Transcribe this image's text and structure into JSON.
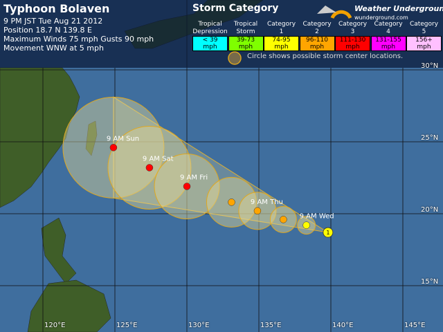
{
  "storm": {
    "name": "Typhoon Bolaven",
    "time": "9 PM JST Tue Aug 21 2012",
    "position": "Position 18.7 N 139.8 E",
    "winds": "Maximum Winds 75 mph  Gusts 90 mph",
    "movement": "Movement WNW at 5 mph"
  },
  "legend": {
    "title": "Storm Category",
    "brand": "Weather Underground",
    "brand_url": "wunderground.com",
    "note": "Circle shows possible storm center locations.",
    "categories": [
      {
        "l1": "Tropical",
        "l2": "Depression",
        "range": "< 39",
        "unit": "mph",
        "color": "#00ffff"
      },
      {
        "l1": "Tropical",
        "l2": "Storm",
        "range": "39-73",
        "unit": "mph",
        "color": "#7fff00"
      },
      {
        "l1": "Category",
        "l2": "1",
        "range": "74-95",
        "unit": "mph",
        "color": "#ffff00"
      },
      {
        "l1": "Category",
        "l2": "2",
        "range": "96-110",
        "unit": "mph",
        "color": "#ffa500"
      },
      {
        "l1": "Category",
        "l2": "3",
        "range": "111-130",
        "unit": "mph",
        "color": "#ff0000"
      },
      {
        "l1": "Category",
        "l2": "4",
        "range": "131-155",
        "unit": "mph",
        "color": "#ff00ff"
      },
      {
        "l1": "Category",
        "l2": "5",
        "range": "156+",
        "unit": "mph",
        "color": "#ffc0ff"
      }
    ]
  },
  "axes": {
    "lon_labels": [
      "120°E",
      "125°E",
      "130°E",
      "135°E",
      "140°E",
      "145°E"
    ],
    "lat_labels": [
      "30°N",
      "25°N",
      "20°N",
      "15°N"
    ]
  },
  "track": {
    "current": {
      "lat": 18.7,
      "lon": 139.8,
      "category": "1",
      "color": "#ffff00"
    },
    "forecast": [
      {
        "label": "9 AM Wed",
        "lat": 19.2,
        "lon": 138.3,
        "color": "#ffff00"
      },
      {
        "label": "",
        "lat": 19.6,
        "lon": 136.7,
        "color": "#ffa500"
      },
      {
        "label": "9 AM Thu",
        "lat": 20.2,
        "lon": 134.9,
        "color": "#ffa500"
      },
      {
        "label": "",
        "lat": 20.8,
        "lon": 133.1,
        "color": "#ffa500"
      },
      {
        "label": "9 AM Fri",
        "lat": 21.9,
        "lon": 130.0,
        "color": "#ff0000"
      },
      {
        "label": "9 AM Sat",
        "lat": 23.2,
        "lon": 127.4,
        "color": "#ff0000"
      },
      {
        "label": "9 AM Sun",
        "lat": 24.6,
        "lon": 124.9,
        "color": "#ff0000"
      }
    ]
  }
}
